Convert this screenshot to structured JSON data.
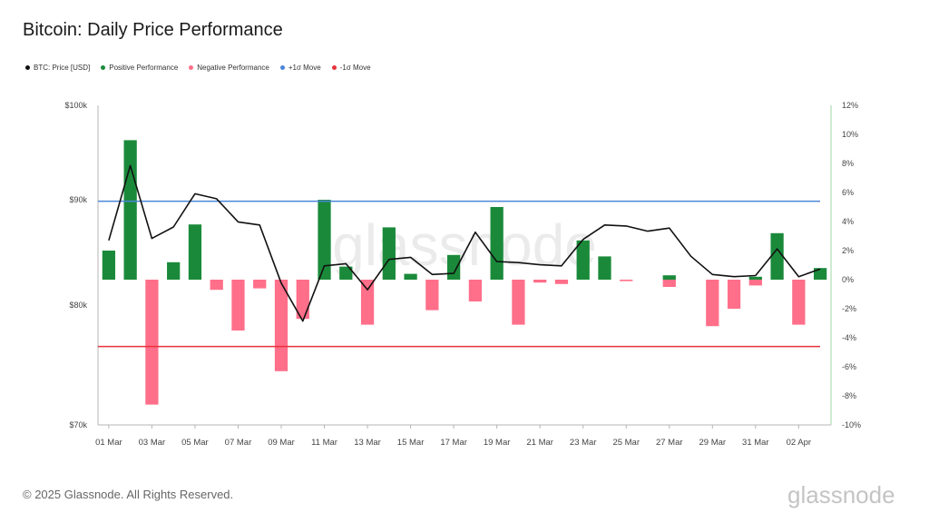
{
  "header": {
    "title": "Bitcoin: Daily Price Performance"
  },
  "legend": [
    {
      "label": "BTC: Price [USD]",
      "color": "#111111"
    },
    {
      "label": "Positive Performance",
      "color": "#1a8a3a"
    },
    {
      "label": "Negative Performance",
      "color": "#ff6f8a"
    },
    {
      "label": "+1σ Move",
      "color": "#4a86d8"
    },
    {
      "label": "-1σ Move",
      "color": "#e8313a"
    }
  ],
  "footer": {
    "copyright": "© 2025 Glassnode. All Rights Reserved.",
    "brand": "glassnode"
  },
  "chart_data": {
    "type": "bar+line",
    "x_tick_labels": [
      "01 Mar",
      "03 Mar",
      "05 Mar",
      "07 Mar",
      "09 Mar",
      "11 Mar",
      "13 Mar",
      "15 Mar",
      "17 Mar",
      "19 Mar",
      "21 Mar",
      "23 Mar",
      "25 Mar",
      "27 Mar",
      "29 Mar",
      "31 Mar",
      "02 Apr"
    ],
    "left_axis": {
      "ticks": [
        "$100k",
        "$90k",
        "$80k",
        "$70k"
      ],
      "tick_values": [
        100000,
        90000,
        80000,
        70000
      ],
      "scale": "log"
    },
    "right_axis": {
      "ticks": [
        "12%",
        "10%",
        "8%",
        "6%",
        "4%",
        "2%",
        "0%",
        "-2%",
        "-4%",
        "-6%",
        "-8%",
        "-10%"
      ],
      "range": [
        -10,
        12
      ]
    },
    "sigma_lines": {
      "plus_1_sigma_pct": 5.4,
      "minus_1_sigma_pct": -4.6
    },
    "series": [
      {
        "name": "BTC: Price [USD]",
        "type": "line",
        "color": "#111111",
        "values": [
          86000,
          93500,
          86200,
          87300,
          90600,
          90100,
          87800,
          87500,
          82000,
          78600,
          83600,
          83800,
          81400,
          84200,
          84400,
          82800,
          82900,
          86800,
          84000,
          83900,
          83700,
          83600,
          86100,
          87500,
          87400,
          86900,
          87200,
          84500,
          82800,
          82600,
          82700,
          85200,
          82600,
          83300
        ]
      },
      {
        "name": "Positive Performance",
        "type": "bar",
        "color": "#1a8a3a",
        "values": [
          2.0,
          9.6,
          0,
          1.2,
          3.8,
          0,
          0,
          0,
          0,
          0,
          5.5,
          0.9,
          0,
          3.6,
          0.4,
          0,
          1.7,
          0,
          5.0,
          0,
          0,
          0,
          2.7,
          1.6,
          0,
          0,
          0.3,
          0,
          0,
          0,
          0.2,
          3.2,
          0,
          0.8
        ]
      },
      {
        "name": "Negative Performance",
        "type": "bar",
        "color": "#ff6f8a",
        "values": [
          0,
          0,
          -8.6,
          0,
          0,
          -0.7,
          -3.5,
          -0.6,
          -6.3,
          -2.7,
          0,
          0,
          -3.1,
          0,
          0,
          -2.1,
          0,
          -1.5,
          0,
          -3.1,
          -0.2,
          -0.3,
          0,
          0,
          -0.1,
          0,
          -0.5,
          0,
          -3.2,
          -2.0,
          -0.4,
          0,
          -3.1,
          0
        ]
      }
    ]
  }
}
